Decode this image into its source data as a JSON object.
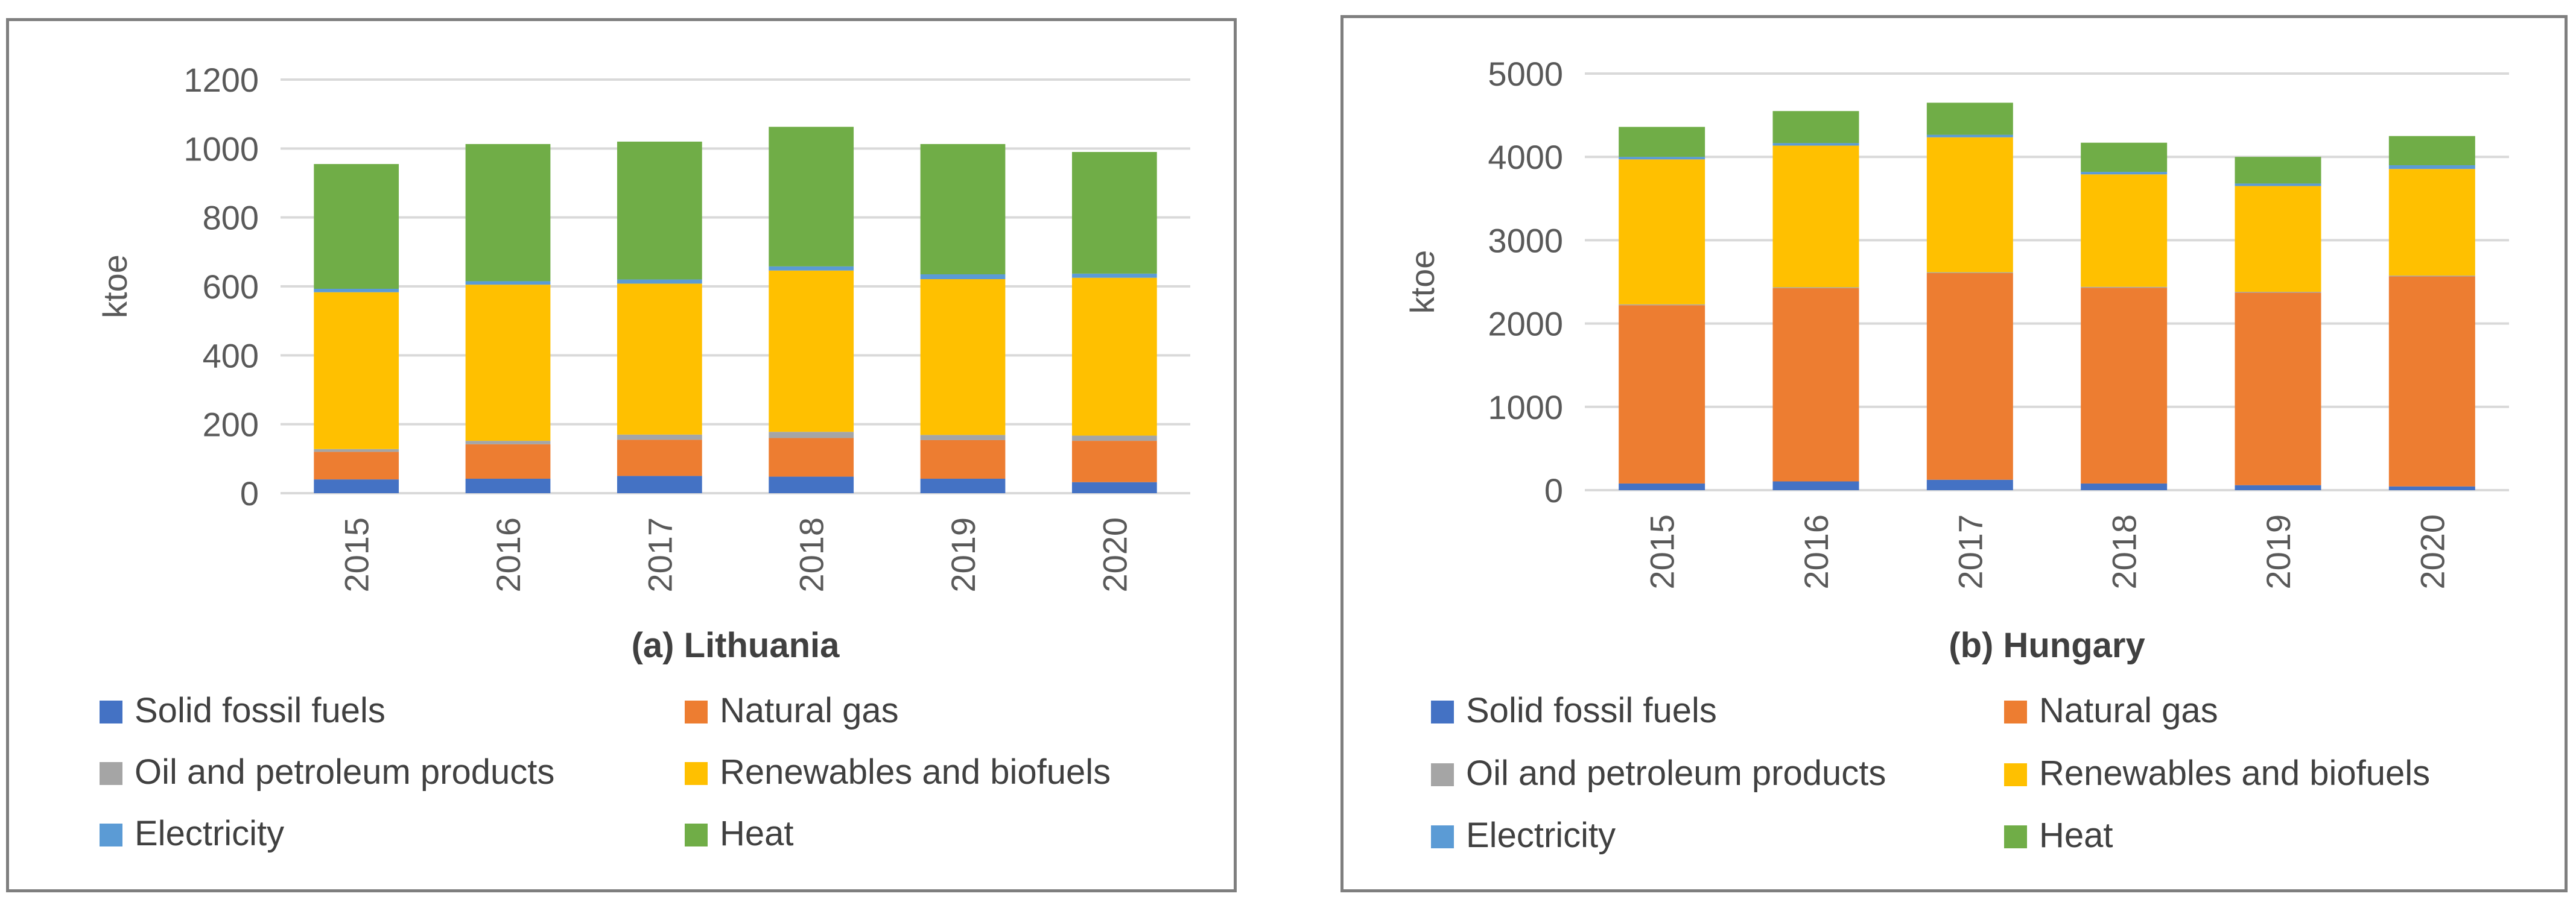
{
  "chart_data": [
    {
      "type": "bar",
      "stacked": true,
      "title": "(a) Lithuania",
      "ylabel": "ktoe",
      "xlabel": "",
      "ylim": [
        0,
        1200
      ],
      "yticks": [
        0,
        200,
        400,
        600,
        800,
        1000,
        1200
      ],
      "ytick_labels": [
        "0",
        "200",
        "400",
        "600",
        "800",
        "1000",
        "1200"
      ],
      "grid": true,
      "legend_position": "bottom",
      "categories": [
        "2015",
        "2016",
        "2017",
        "2018",
        "2019",
        "2020"
      ],
      "series": [
        {
          "name": "Solid fossil fuels",
          "color": "#4472c4",
          "values": [
            40,
            42,
            50,
            48,
            42,
            32
          ]
        },
        {
          "name": "Natural gas",
          "color": "#ed7d31",
          "values": [
            80,
            100,
            105,
            112,
            112,
            120
          ]
        },
        {
          "name": "Oil and petroleum products",
          "color": "#a5a5a5",
          "values": [
            8,
            10,
            15,
            18,
            15,
            15
          ]
        },
        {
          "name": "Renewables and biofuels",
          "color": "#ffc000",
          "values": [
            455,
            453,
            438,
            468,
            452,
            458
          ]
        },
        {
          "name": "Electricity",
          "color": "#5b9bd5",
          "values": [
            10,
            10,
            12,
            12,
            14,
            12
          ]
        },
        {
          "name": "Heat",
          "color": "#70ad47",
          "values": [
            362,
            398,
            400,
            405,
            378,
            353
          ]
        }
      ]
    },
    {
      "type": "bar",
      "stacked": true,
      "title": "(b) Hungary",
      "ylabel": "ktoe",
      "xlabel": "",
      "ylim": [
        0,
        5000
      ],
      "yticks": [
        0,
        1000,
        2000,
        3000,
        4000,
        5000
      ],
      "ytick_labels": [
        "0",
        "1000",
        "2000",
        "3000",
        "4000",
        "5000"
      ],
      "grid": true,
      "legend_position": "bottom",
      "categories": [
        "2015",
        "2016",
        "2017",
        "2018",
        "2019",
        "2020"
      ],
      "series": [
        {
          "name": "Solid fossil fuels",
          "color": "#4472c4",
          "values": [
            80,
            105,
            125,
            80,
            60,
            45
          ]
        },
        {
          "name": "Natural gas",
          "color": "#ed7d31",
          "values": [
            2140,
            2320,
            2480,
            2350,
            2310,
            2520
          ]
        },
        {
          "name": "Oil and petroleum products",
          "color": "#a5a5a5",
          "values": [
            10,
            10,
            10,
            10,
            10,
            10
          ]
        },
        {
          "name": "Renewables and biofuels",
          "color": "#ffc000",
          "values": [
            1740,
            1700,
            1620,
            1350,
            1270,
            1280
          ]
        },
        {
          "name": "Electricity",
          "color": "#5b9bd5",
          "values": [
            30,
            30,
            30,
            30,
            30,
            45
          ]
        },
        {
          "name": "Heat",
          "color": "#70ad47",
          "values": [
            360,
            385,
            385,
            350,
            320,
            350
          ]
        }
      ]
    }
  ]
}
